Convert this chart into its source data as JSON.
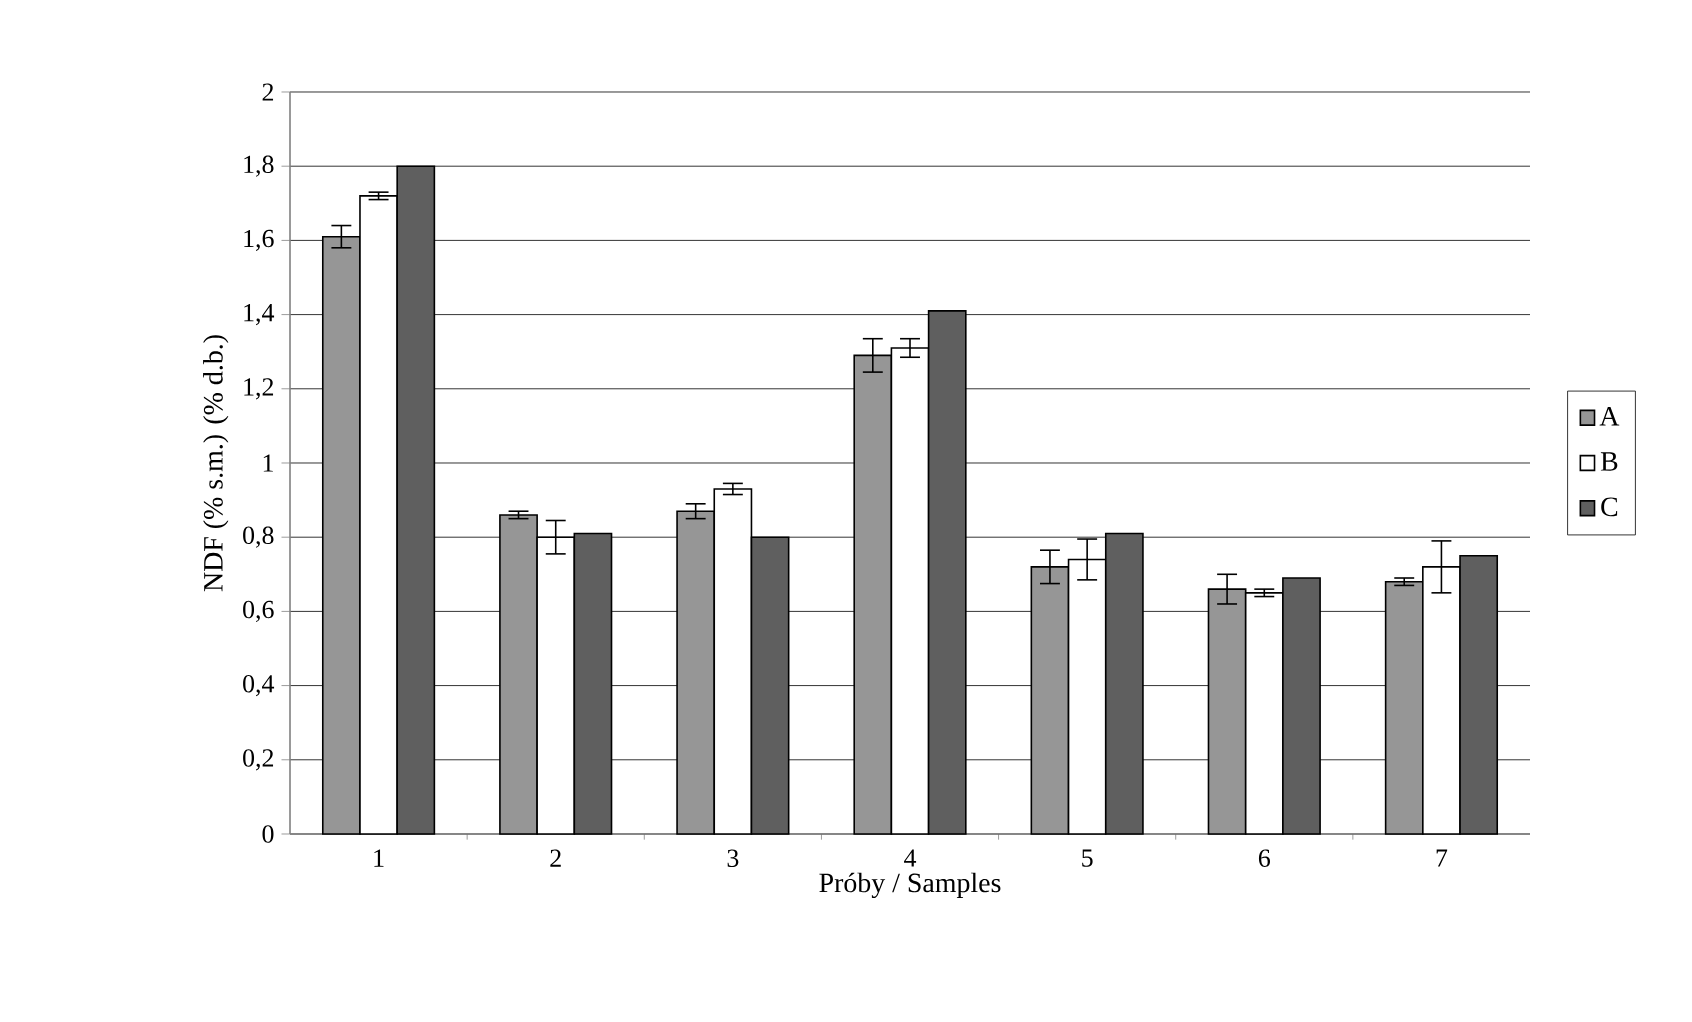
{
  "chart_data": {
    "type": "bar",
    "xlabel": "Próby / Samples",
    "ylabel": "NDF (% s.m.)  (% d.b.)",
    "categories": [
      "1",
      "2",
      "3",
      "4",
      "5",
      "6",
      "7"
    ],
    "series": [
      {
        "name": "A",
        "color": "#969696",
        "values": [
          1.61,
          0.86,
          0.87,
          1.29,
          0.72,
          0.66,
          0.68
        ],
        "errors": [
          0.03,
          0.01,
          0.02,
          0.045,
          0.045,
          0.04,
          0.01
        ]
      },
      {
        "name": "B",
        "color": "#ffffff",
        "values": [
          1.72,
          0.8,
          0.93,
          1.31,
          0.74,
          0.65,
          0.72
        ],
        "errors": [
          0.01,
          0.045,
          0.015,
          0.025,
          0.055,
          0.01,
          0.07
        ]
      },
      {
        "name": "C",
        "color": "#5f5f5f",
        "values": [
          1.8,
          0.81,
          0.8,
          1.41,
          0.81,
          0.69,
          0.75
        ]
      }
    ],
    "ylim": [
      0,
      2
    ],
    "yticks": [
      0,
      {
        "value": 0.2,
        "label": "0,2"
      },
      {
        "value": 0.4,
        "label": "0,4"
      },
      {
        "value": 0.6,
        "label": "0,6"
      },
      {
        "value": 0.8,
        "label": "0,8"
      },
      1,
      {
        "value": 1.2,
        "label": "1,2"
      },
      {
        "value": 1.4,
        "label": "1,4"
      },
      {
        "value": 1.6,
        "label": "1,6"
      },
      {
        "value": 1.8,
        "label": "1,8"
      },
      2
    ],
    "grid": "y",
    "legend": "right"
  }
}
